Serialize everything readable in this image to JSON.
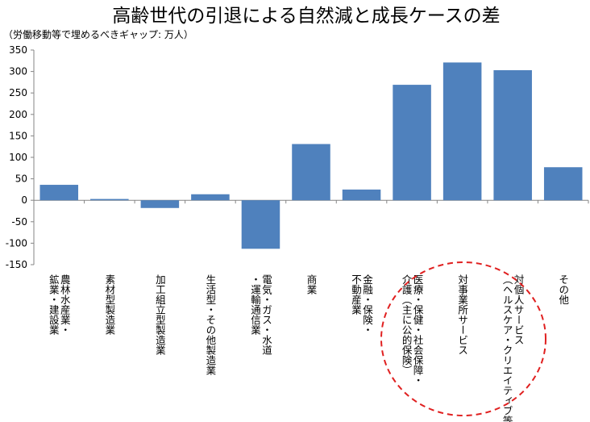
{
  "chart_data": {
    "type": "bar",
    "title": "高齢世代の引退による自然減と成長ケースの差",
    "subtitle": "（労働移動等で埋めるべきギャップ: 万人）",
    "categories": [
      [
        "農林水産業・",
        "鉱業・建設業"
      ],
      [
        "素材型製造業"
      ],
      [
        "加工組立型製造業"
      ],
      [
        "生活型・その他製造業"
      ],
      [
        "電気・ガス・水道",
        "・運輸通信業"
      ],
      [
        "商業"
      ],
      [
        "金融・保険・",
        "不動産業"
      ],
      [
        "医療・保健・社会保障・",
        "介護（主に公的保険）"
      ],
      [
        "対事業所サービス"
      ],
      [
        "対個人サービス",
        "（ヘルスケア・クリエイティブ等）"
      ],
      [
        "その他"
      ]
    ],
    "values": [
      36,
      3,
      -18,
      14,
      -113,
      131,
      25,
      269,
      321,
      303,
      77
    ],
    "ylim": [
      -150,
      350
    ],
    "yticks": [
      "350",
      "300",
      "250",
      "200",
      "150",
      "100",
      "50",
      "0",
      "-50",
      "-100",
      "-150"
    ],
    "grid": false,
    "bar_color": "#4f81bd",
    "highlight_color": "#e02020",
    "highlight_categories": [
      7,
      8,
      9
    ]
  }
}
